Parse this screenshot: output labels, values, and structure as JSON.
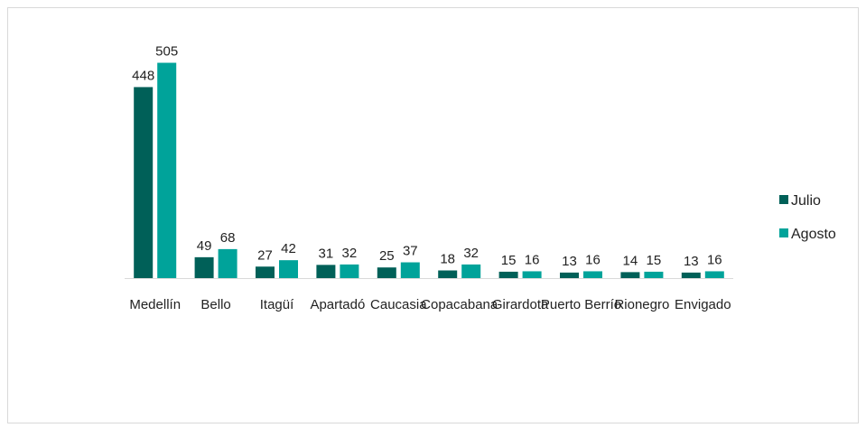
{
  "chart_data": {
    "type": "bar",
    "title": "",
    "xlabel": "",
    "ylabel": "",
    "categories": [
      "Medellín",
      "Bello",
      "Itagüí",
      "Apartadó",
      "Caucasia",
      "Copacabana",
      "Girardota",
      "Puerto Berrío",
      "Rionegro",
      "Envigado"
    ],
    "series": [
      {
        "name": "Julio",
        "color": "#006058",
        "values": [
          448,
          49,
          27,
          31,
          25,
          18,
          15,
          13,
          14,
          13
        ]
      },
      {
        "name": "Agosto",
        "color": "#00A39A",
        "values": [
          505,
          68,
          42,
          32,
          37,
          32,
          16,
          16,
          15,
          16
        ]
      }
    ],
    "ylim": [
      0,
      540
    ],
    "grid": false,
    "legend_position": "right"
  }
}
